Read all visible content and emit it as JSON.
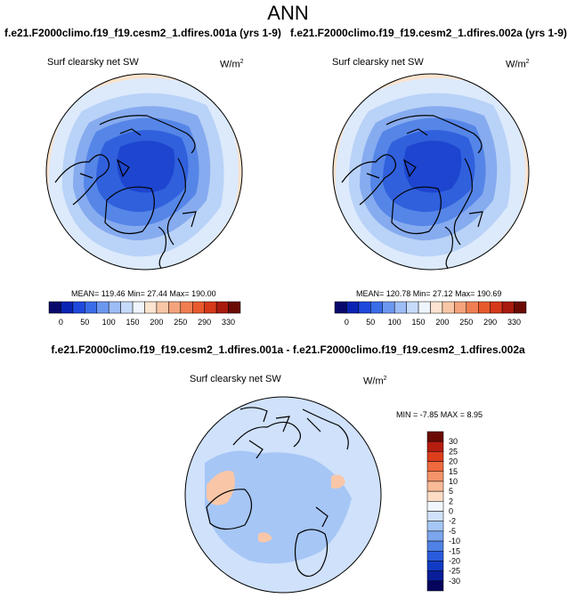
{
  "title": "ANN",
  "left_panel": {
    "case": "f.e21.F2000climo.f19_f19.cesm2_1.dfires.001a (yrs 1-9)",
    "variable": "Surf clearsky net SW",
    "units": "W/m",
    "units_exp": "2",
    "stats": "MEAN= 119.46  Min=  27.44  Max= 190.00"
  },
  "right_panel": {
    "case": "f.e21.F2000climo.f19_f19.cesm2_1.dfires.002a (yrs 1-9)",
    "variable": "Surf clearsky net SW",
    "units": "W/m",
    "units_exp": "2",
    "stats": "MEAN= 120.78  Min=  27.12  Max= 190.69"
  },
  "diff_panel": {
    "title": "f.e21.F2000climo.f19_f19.cesm2_1.dfires.001a - f.e21.F2000climo.f19_f19.cesm2_1.dfires.002a",
    "variable": "Surf clearsky net SW",
    "units": "W/m",
    "units_exp": "2",
    "stats": "MIN =  -7.85 MAX =   8.95"
  },
  "colorbar_main": {
    "labels": [
      "0",
      "50",
      "100",
      "150",
      "200",
      "250",
      "290",
      "330"
    ],
    "colors": [
      "#08086b",
      "#0a23b4",
      "#1f48dd",
      "#3a6ce8",
      "#6c97f0",
      "#9dbdf6",
      "#c6dbfb",
      "#eef5fe",
      "#fce4d0",
      "#f9c7a8",
      "#f4a37c",
      "#ef7e52",
      "#e85a2e",
      "#d6381a",
      "#a81a0e",
      "#6b0a04"
    ]
  },
  "colorbar_diff": {
    "labels": [
      "30",
      "25",
      "20",
      "15",
      "10",
      "5",
      "2",
      "0",
      "-2",
      "-5",
      "-10",
      "-15",
      "-20",
      "-25",
      "-30"
    ],
    "colors": [
      "#6b0a04",
      "#b51d0f",
      "#dc3d1d",
      "#ef6a3e",
      "#f4936a",
      "#f9ba97",
      "#fddcc6",
      "#f2f7fe",
      "#cfe1fb",
      "#a6c6f6",
      "#7ba6ee",
      "#4f81e6",
      "#2a5bdc",
      "#123bc4",
      "#0a1e9a",
      "#05055e"
    ]
  },
  "map_colors": {
    "ocean_edge": "#fbe2cc",
    "ring_1": "#dceafc",
    "ring_2": "#b9d2f7",
    "ring_3": "#86abef",
    "ring_4": "#5585e7",
    "ring_5": "#3060dc",
    "ring_6": "#1d45cf",
    "diff_bg": "#cfe1fb",
    "diff_pos": "#f9c7a8",
    "diff_neg": "#a6c6f6"
  }
}
